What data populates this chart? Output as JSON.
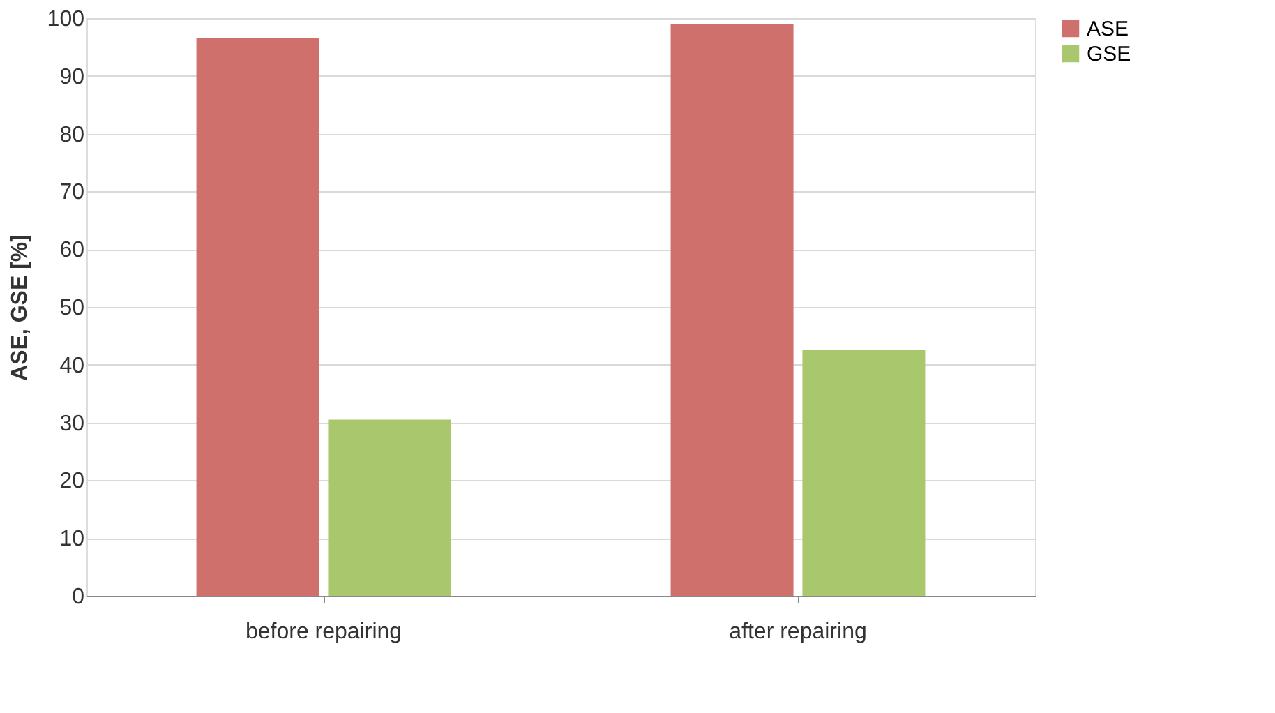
{
  "chart_data": {
    "type": "bar",
    "ylabel": "ASE, GSE [%]",
    "categories": [
      "before repairing",
      "after repairing"
    ],
    "series": [
      {
        "name": "ASE",
        "color": "#d0706c",
        "values": [
          96.5,
          99
        ]
      },
      {
        "name": "GSE",
        "color": "#a9c86e",
        "values": [
          30.5,
          42.5
        ]
      }
    ],
    "ylim": [
      0,
      100
    ],
    "yticks": [
      0,
      10,
      20,
      30,
      40,
      50,
      60,
      70,
      80,
      90,
      100
    ],
    "grid": "y",
    "legend": "right"
  }
}
